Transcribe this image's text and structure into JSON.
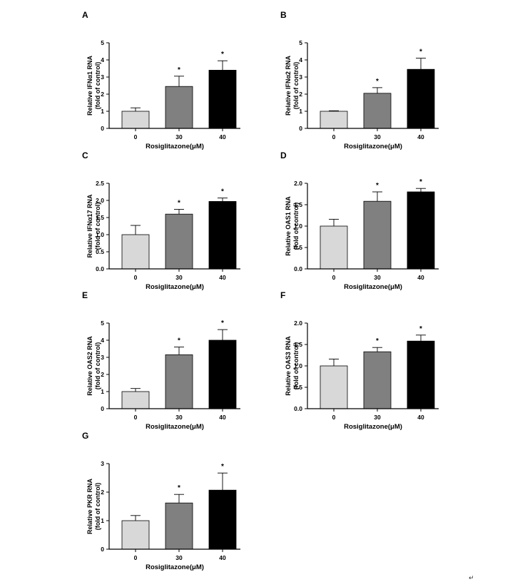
{
  "page_mark": "↵",
  "chart_data": [
    {
      "type": "bar",
      "panel": "A",
      "title": "",
      "categories": [
        "0",
        "30",
        "40"
      ],
      "values": [
        1.0,
        2.45,
        3.4
      ],
      "errors": [
        0.2,
        0.6,
        0.55
      ],
      "significance": [
        "",
        "*",
        "*"
      ],
      "ylabel": "Relative IFNα1 RNA",
      "ylabel2": "(fold of control)",
      "xlabel": "Rosiglitazone(μM)",
      "ylim": [
        0,
        5
      ],
      "yticks": [
        "0",
        "1",
        "2",
        "3",
        "4",
        "5"
      ],
      "bar_colors": [
        "#d8d8d8",
        "#808080",
        "#000000"
      ]
    },
    {
      "type": "bar",
      "panel": "B",
      "title": "",
      "categories": [
        "0",
        "30",
        "40"
      ],
      "values": [
        1.0,
        2.05,
        3.45
      ],
      "errors": [
        0.03,
        0.33,
        0.65
      ],
      "significance": [
        "",
        "*",
        "*"
      ],
      "ylabel": "Relative IFNα2 RNA",
      "ylabel2": "(fold of control)",
      "xlabel": "Rosiglitazone(μM)",
      "ylim": [
        0,
        5
      ],
      "yticks": [
        "0",
        "1",
        "2",
        "3",
        "4",
        "5"
      ],
      "bar_colors": [
        "#d8d8d8",
        "#808080",
        "#000000"
      ]
    },
    {
      "type": "bar",
      "panel": "C",
      "title": "",
      "categories": [
        "0",
        "30",
        "40"
      ],
      "values": [
        1.0,
        1.6,
        1.97
      ],
      "errors": [
        0.27,
        0.14,
        0.1
      ],
      "significance": [
        "",
        "*",
        "*"
      ],
      "ylabel": "Relative IFNα17 RNA",
      "ylabel2": "(fold of control)",
      "xlabel": "Rosiglitazone(μM)",
      "ylim": [
        0,
        2.5
      ],
      "yticks": [
        "0.0",
        "0.5",
        "1.0",
        "1.5",
        "2.0",
        "2.5"
      ],
      "bar_colors": [
        "#d8d8d8",
        "#808080",
        "#000000"
      ]
    },
    {
      "type": "bar",
      "panel": "D",
      "title": "",
      "categories": [
        "0",
        "30",
        "40"
      ],
      "values": [
        1.0,
        1.58,
        1.8
      ],
      "errors": [
        0.16,
        0.22,
        0.08
      ],
      "significance": [
        "",
        "*",
        "*"
      ],
      "ylabel": "Relative OAS1 RNA",
      "ylabel2": "(fold of control)",
      "xlabel": "Rosiglitazone(μM)",
      "ylim": [
        0,
        2.0
      ],
      "yticks": [
        "0.0",
        "0.5",
        "1.0",
        "1.5",
        "2.0"
      ],
      "bar_colors": [
        "#d8d8d8",
        "#808080",
        "#000000"
      ]
    },
    {
      "type": "bar",
      "panel": "E",
      "title": "",
      "categories": [
        "0",
        "30",
        "40"
      ],
      "values": [
        1.0,
        3.15,
        4.0
      ],
      "errors": [
        0.18,
        0.45,
        0.62
      ],
      "significance": [
        "",
        "*",
        "*"
      ],
      "ylabel": "Relative OAS2 RNA",
      "ylabel2": "(fold of control)",
      "xlabel": "Rosiglitazone(μM)",
      "ylim": [
        0,
        5
      ],
      "yticks": [
        "0",
        "1",
        "2",
        "3",
        "4",
        "5"
      ],
      "bar_colors": [
        "#d8d8d8",
        "#808080",
        "#000000"
      ]
    },
    {
      "type": "bar",
      "panel": "F",
      "title": "",
      "categories": [
        "0",
        "30",
        "40"
      ],
      "values": [
        1.0,
        1.33,
        1.58
      ],
      "errors": [
        0.16,
        0.1,
        0.14
      ],
      "significance": [
        "",
        "*",
        "*"
      ],
      "ylabel": "Relative OAS3 RNA",
      "ylabel2": "(fold of control)",
      "xlabel": "Rosiglitazone(μM)",
      "ylim": [
        0,
        2.0
      ],
      "yticks": [
        "0.0",
        "0.5",
        "1.0",
        "1.5",
        "2.0"
      ],
      "bar_colors": [
        "#d8d8d8",
        "#808080",
        "#000000"
      ]
    },
    {
      "type": "bar",
      "panel": "G",
      "title": "",
      "categories": [
        "0",
        "30",
        "40"
      ],
      "values": [
        1.0,
        1.62,
        2.07
      ],
      "errors": [
        0.18,
        0.3,
        0.6
      ],
      "significance": [
        "",
        "*",
        "*"
      ],
      "ylabel": "Relative PKR RNA",
      "ylabel2": "(fold of control)",
      "xlabel": "Rosiglitazone(μM)",
      "ylim": [
        0,
        3
      ],
      "yticks": [
        "0",
        "1",
        "2",
        "3"
      ],
      "bar_colors": [
        "#d8d8d8",
        "#808080",
        "#000000"
      ]
    }
  ]
}
